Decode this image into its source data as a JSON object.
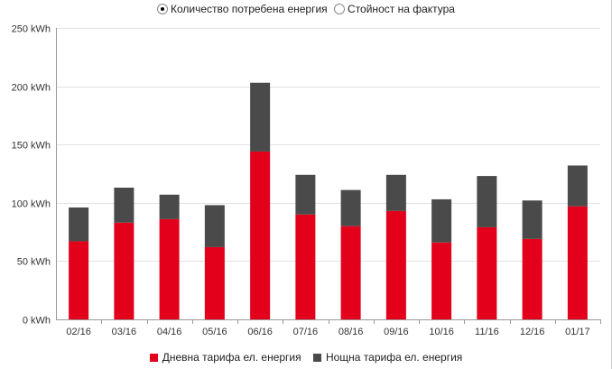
{
  "radios": [
    {
      "label": "Количество потребена енергия",
      "checked": true
    },
    {
      "label": "Стойност на фактура",
      "checked": false
    }
  ],
  "chart_data": {
    "type": "bar",
    "stacked": true,
    "categories": [
      "02/16",
      "03/16",
      "04/16",
      "05/16",
      "06/16",
      "07/16",
      "08/16",
      "09/16",
      "10/16",
      "11/16",
      "12/16",
      "01/17"
    ],
    "series": [
      {
        "name": "Дневна тарифа ел. енергия",
        "color": "#e2001a",
        "values": [
          67,
          83,
          86,
          62,
          144,
          90,
          80,
          93,
          66,
          79,
          69,
          97
        ]
      },
      {
        "name": "Нощна тарифа ел. енергия",
        "color": "#4a4a4a",
        "values": [
          29,
          30,
          21,
          36,
          59,
          34,
          31,
          31,
          37,
          44,
          33,
          35
        ]
      }
    ],
    "yticks": [
      "0 kWh",
      "50 kWh",
      "100 kWh",
      "150 kWh",
      "200 kWh",
      "250 kWh"
    ],
    "ylim": [
      0,
      250
    ],
    "grid": true,
    "legend": "bottom"
  }
}
